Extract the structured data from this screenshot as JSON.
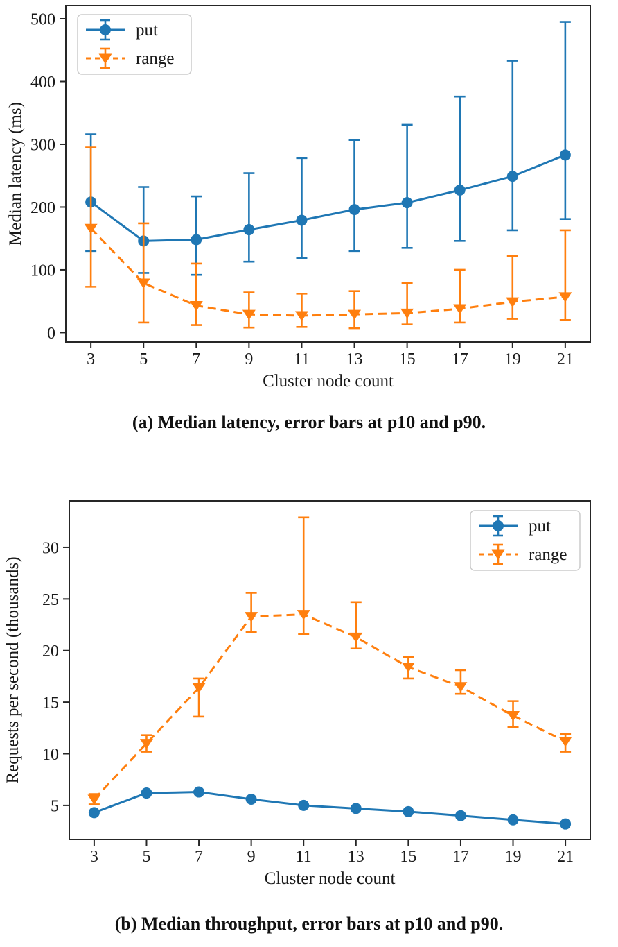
{
  "colors": {
    "put": "#1f77b4",
    "range": "#ff7f0e",
    "axis": "#262626",
    "text": "#1a1a1a",
    "legend_border": "#cccccc"
  },
  "captions": {
    "a": "(a) Median latency, error bars at p10 and p90.",
    "b": "(b) Median throughput, error bars at p10 and p90."
  },
  "chart_data": [
    {
      "type": "line",
      "title": "",
      "xlabel": "Cluster node count",
      "ylabel": "Median latency (ms)",
      "x": [
        3,
        5,
        7,
        9,
        11,
        13,
        15,
        17,
        19,
        21
      ],
      "xticks": [
        3,
        5,
        7,
        9,
        11,
        13,
        15,
        17,
        19,
        21
      ],
      "yticks": [
        0,
        100,
        200,
        300,
        400,
        500
      ],
      "xlim": [
        2.05,
        21.95
      ],
      "ylim": [
        -15,
        521
      ],
      "grid": false,
      "legend_position": "upper-left",
      "error_bars": "p10 and p90",
      "series": [
        {
          "name": "put",
          "color": "#1f77b4",
          "linestyle": "solid",
          "marker": "circle",
          "values": [
            208,
            146,
            148,
            164,
            179,
            196,
            207,
            227,
            249,
            283
          ],
          "p10": [
            130,
            95,
            92,
            113,
            119,
            130,
            135,
            146,
            163,
            181
          ],
          "p90": [
            316,
            232,
            217,
            254,
            278,
            307,
            331,
            376,
            433,
            495
          ]
        },
        {
          "name": "range",
          "color": "#ff7f0e",
          "linestyle": "dashed",
          "marker": "triangle-down",
          "values": [
            166,
            79,
            43,
            29,
            27,
            29,
            31,
            38,
            49,
            57
          ],
          "p10": [
            73,
            16,
            12,
            8,
            9,
            7,
            13,
            16,
            22,
            20
          ],
          "p90": [
            295,
            174,
            110,
            64,
            62,
            66,
            79,
            100,
            122,
            163
          ]
        }
      ]
    },
    {
      "type": "line",
      "title": "",
      "xlabel": "Cluster node count",
      "ylabel": "Requests per second (thousands)",
      "x": [
        3,
        5,
        7,
        9,
        11,
        13,
        15,
        17,
        19,
        21
      ],
      "xticks": [
        3,
        5,
        7,
        9,
        11,
        13,
        15,
        17,
        19,
        21
      ],
      "yticks": [
        5,
        10,
        15,
        20,
        25,
        30
      ],
      "xlim": [
        2.05,
        21.95
      ],
      "ylim": [
        1.7,
        34.5
      ],
      "grid": false,
      "legend_position": "upper-right",
      "error_bars": "p10 and p90",
      "series": [
        {
          "name": "put",
          "color": "#1f77b4",
          "linestyle": "solid",
          "marker": "circle",
          "values": [
            4.3,
            6.2,
            6.3,
            5.6,
            5.0,
            4.7,
            4.4,
            4.0,
            3.6,
            3.2
          ],
          "p10": [
            4.3,
            6.2,
            6.3,
            5.6,
            5.0,
            4.7,
            4.4,
            4.0,
            3.6,
            3.2
          ],
          "p90": [
            4.3,
            6.2,
            6.3,
            5.6,
            5.0,
            4.7,
            4.4,
            4.0,
            3.6,
            3.2
          ]
        },
        {
          "name": "range",
          "color": "#ff7f0e",
          "linestyle": "dashed",
          "marker": "triangle-down",
          "values": [
            5.6,
            11.0,
            16.4,
            23.3,
            23.5,
            21.3,
            18.4,
            16.5,
            13.7,
            11.2
          ],
          "p10": [
            5.1,
            10.2,
            13.6,
            21.8,
            21.6,
            20.2,
            17.3,
            15.8,
            12.6,
            10.2
          ],
          "p90": [
            6.1,
            11.8,
            17.3,
            25.6,
            32.9,
            24.7,
            19.4,
            18.1,
            15.1,
            11.9
          ]
        }
      ]
    }
  ]
}
